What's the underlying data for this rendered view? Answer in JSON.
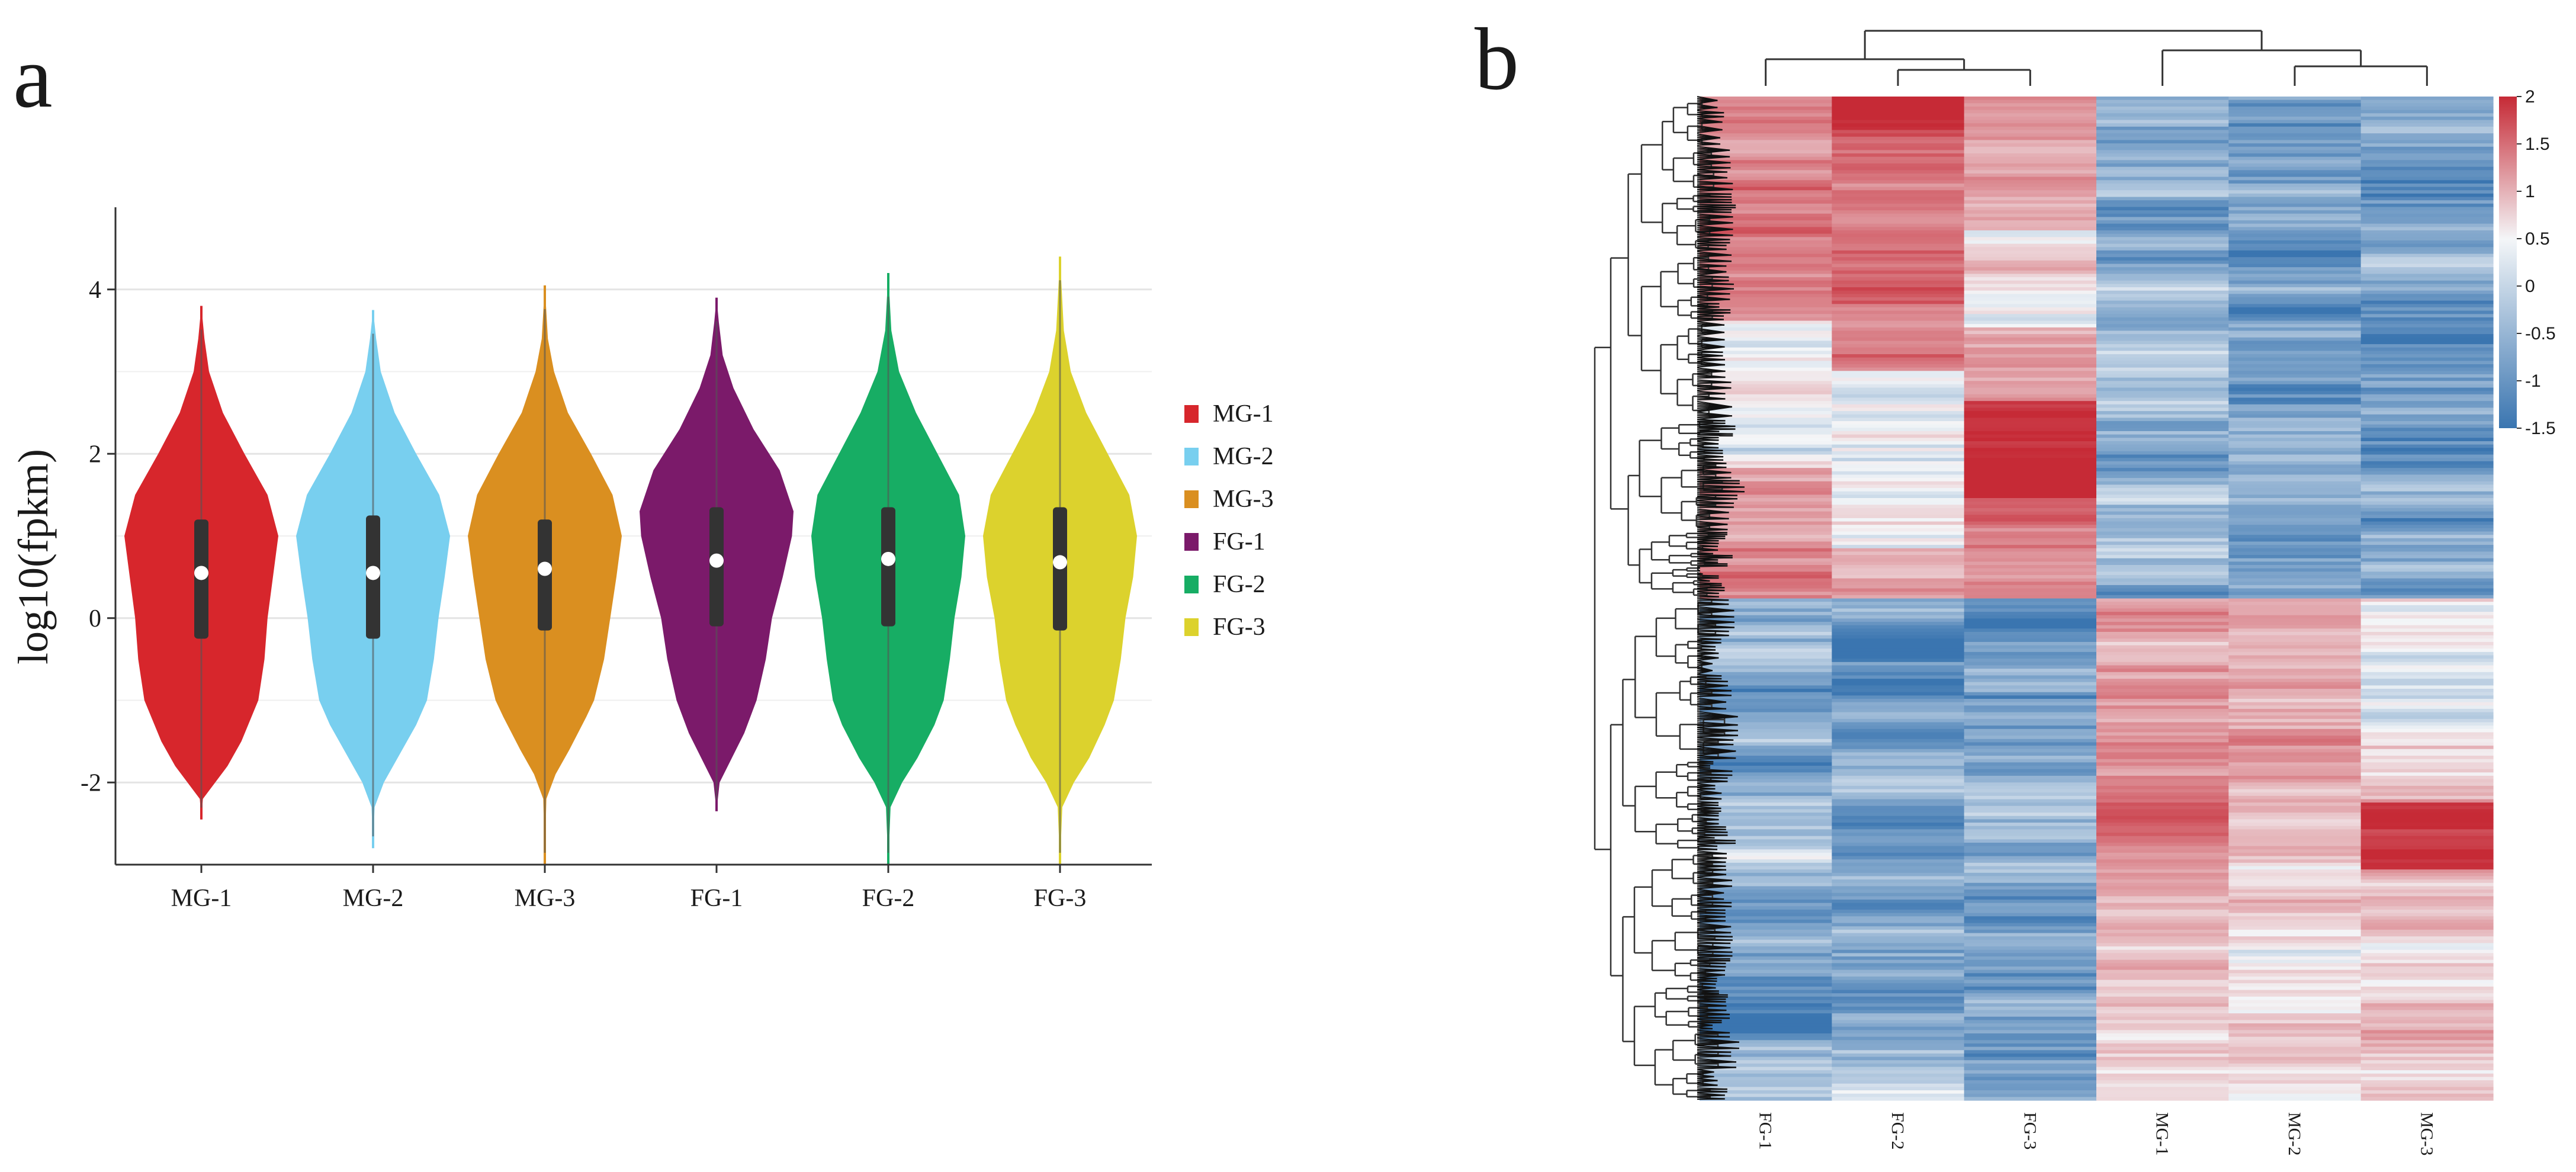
{
  "chart_data": [
    {
      "panel": "a",
      "type": "violin",
      "ylabel": "log10(fpkm)",
      "xlabel": "",
      "ylim": [
        -3,
        5
      ],
      "yticks": [
        -2,
        0,
        2,
        4
      ],
      "grid": true,
      "legend_position": "right",
      "categories": [
        "MG-1",
        "MG-2",
        "MG-3",
        "FG-1",
        "FG-2",
        "FG-3"
      ],
      "series": [
        {
          "name": "MG-1",
          "color": "#D7262C",
          "min": -2.45,
          "max": 3.8,
          "q1": -0.25,
          "median": 0.55,
          "q3": 1.2,
          "profile": [
            [
              -2.45,
              0.0
            ],
            [
              -2.2,
              0.02
            ],
            [
              -2.0,
              0.18
            ],
            [
              -1.8,
              0.34
            ],
            [
              -1.5,
              0.52
            ],
            [
              -1.0,
              0.74
            ],
            [
              -0.5,
              0.82
            ],
            [
              0.0,
              0.86
            ],
            [
              0.5,
              0.93
            ],
            [
              1.0,
              1.0
            ],
            [
              1.5,
              0.86
            ],
            [
              2.0,
              0.56
            ],
            [
              2.5,
              0.28
            ],
            [
              3.0,
              0.1
            ],
            [
              3.4,
              0.04
            ],
            [
              3.8,
              0.0
            ]
          ]
        },
        {
          "name": "MG-2",
          "color": "#78CFEF",
          "min": -2.8,
          "max": 3.75,
          "q1": -0.25,
          "median": 0.55,
          "q3": 1.25,
          "profile": [
            [
              -2.8,
              0.0
            ],
            [
              -2.3,
              0.02
            ],
            [
              -2.0,
              0.14
            ],
            [
              -1.7,
              0.32
            ],
            [
              -1.3,
              0.56
            ],
            [
              -1.0,
              0.7
            ],
            [
              -0.5,
              0.79
            ],
            [
              0.0,
              0.85
            ],
            [
              0.5,
              0.93
            ],
            [
              1.0,
              1.0
            ],
            [
              1.5,
              0.86
            ],
            [
              2.0,
              0.56
            ],
            [
              2.5,
              0.28
            ],
            [
              3.0,
              0.1
            ],
            [
              3.4,
              0.04
            ],
            [
              3.75,
              0.0
            ]
          ]
        },
        {
          "name": "MG-3",
          "color": "#DA8F20",
          "min": -3.0,
          "max": 4.05,
          "q1": -0.15,
          "median": 0.6,
          "q3": 1.2,
          "profile": [
            [
              -3.0,
              0.0
            ],
            [
              -2.2,
              0.02
            ],
            [
              -1.9,
              0.14
            ],
            [
              -1.6,
              0.32
            ],
            [
              -1.2,
              0.54
            ],
            [
              -1.0,
              0.64
            ],
            [
              -0.5,
              0.77
            ],
            [
              0.0,
              0.85
            ],
            [
              0.5,
              0.93
            ],
            [
              1.0,
              1.0
            ],
            [
              1.5,
              0.88
            ],
            [
              2.0,
              0.6
            ],
            [
              2.5,
              0.3
            ],
            [
              3.0,
              0.12
            ],
            [
              3.4,
              0.04
            ],
            [
              4.05,
              0.0
            ]
          ]
        },
        {
          "name": "FG-1",
          "color": "#7B1A6A",
          "min": -2.35,
          "max": 3.9,
          "q1": -0.1,
          "median": 0.7,
          "q3": 1.35,
          "profile": [
            [
              -2.35,
              0.0
            ],
            [
              -2.0,
              0.04
            ],
            [
              -1.7,
              0.2
            ],
            [
              -1.4,
              0.36
            ],
            [
              -1.0,
              0.52
            ],
            [
              -0.5,
              0.64
            ],
            [
              0.0,
              0.72
            ],
            [
              0.5,
              0.86
            ],
            [
              1.0,
              0.98
            ],
            [
              1.3,
              1.0
            ],
            [
              1.8,
              0.82
            ],
            [
              2.3,
              0.48
            ],
            [
              2.8,
              0.22
            ],
            [
              3.2,
              0.08
            ],
            [
              3.6,
              0.03
            ],
            [
              3.9,
              0.0
            ]
          ]
        },
        {
          "name": "FG-2",
          "color": "#17AD64",
          "min": -3.0,
          "max": 4.2,
          "q1": -0.1,
          "median": 0.72,
          "q3": 1.35,
          "profile": [
            [
              -3.0,
              0.0
            ],
            [
              -2.3,
              0.03
            ],
            [
              -2.0,
              0.18
            ],
            [
              -1.7,
              0.38
            ],
            [
              -1.3,
              0.6
            ],
            [
              -1.0,
              0.72
            ],
            [
              -0.5,
              0.8
            ],
            [
              0.0,
              0.86
            ],
            [
              0.5,
              0.95
            ],
            [
              1.0,
              1.0
            ],
            [
              1.5,
              0.92
            ],
            [
              2.0,
              0.64
            ],
            [
              2.5,
              0.36
            ],
            [
              3.0,
              0.14
            ],
            [
              3.5,
              0.04
            ],
            [
              4.2,
              0.0
            ]
          ]
        },
        {
          "name": "FG-3",
          "color": "#DCD22D",
          "min": -3.0,
          "max": 4.4,
          "q1": -0.15,
          "median": 0.68,
          "q3": 1.35,
          "profile": [
            [
              -3.0,
              0.0
            ],
            [
              -2.3,
              0.03
            ],
            [
              -2.0,
              0.18
            ],
            [
              -1.7,
              0.38
            ],
            [
              -1.3,
              0.58
            ],
            [
              -1.0,
              0.7
            ],
            [
              -0.5,
              0.79
            ],
            [
              0.0,
              0.85
            ],
            [
              0.5,
              0.95
            ],
            [
              1.0,
              1.0
            ],
            [
              1.5,
              0.9
            ],
            [
              2.0,
              0.62
            ],
            [
              2.5,
              0.34
            ],
            [
              3.0,
              0.14
            ],
            [
              3.5,
              0.05
            ],
            [
              4.4,
              0.0
            ]
          ]
        }
      ]
    },
    {
      "panel": "b",
      "type": "heatmap",
      "columns": [
        "FG-1",
        "FG-2",
        "FG-3",
        "MG-1",
        "MG-2",
        "MG-3"
      ],
      "colorbar": {
        "ticks": [
          "2",
          "1.5",
          "1",
          "0.5",
          "0",
          "-0.5",
          "-1",
          "-1.5"
        ],
        "range": [
          -1.5,
          2
        ],
        "low_color": "#3A75B0",
        "mid_color": "#F4F6F8",
        "high_color": "#C62A36"
      },
      "row_blocks": [
        {
          "start": 0.0,
          "end": 0.5,
          "values": [
            1.0,
            1.2,
            1.0,
            -0.9,
            -1.0,
            -1.0
          ]
        },
        {
          "start": 0.5,
          "end": 1.0,
          "values": [
            -0.9,
            -1.0,
            -1.0,
            0.9,
            0.8,
            0.6
          ]
        }
      ],
      "column_dendrogram": "clusters (FG-1, (FG-2, FG-3)) and (MG-1, (MG-2, MG-3))"
    }
  ]
}
